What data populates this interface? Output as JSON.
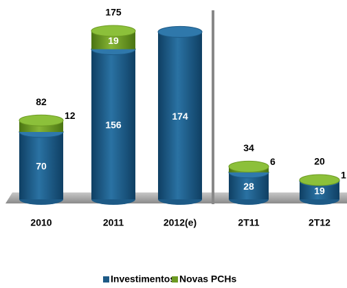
{
  "chart_data": {
    "type": "stacked-cylinder",
    "categories": [
      "2010",
      "2011",
      "2012(e)",
      "2T11",
      "2T12"
    ],
    "series": [
      {
        "name": "Investimentos",
        "color": "#1d5a86",
        "values": [
          70,
          156,
          174,
          28,
          19
        ]
      },
      {
        "name": "Novas PCHs",
        "color": "#6c9a22",
        "values": [
          12,
          19,
          null,
          6,
          1
        ]
      }
    ],
    "totals": [
      82,
      175,
      null,
      34,
      20
    ],
    "legend": "bottom"
  }
}
